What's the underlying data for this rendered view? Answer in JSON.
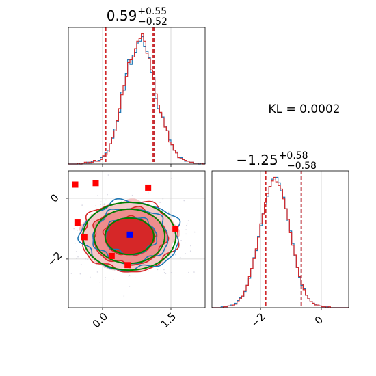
{
  "annotations": {
    "kl_label": "KL = 0.0002"
  },
  "colors": {
    "series_a": "#1f77b4",
    "series_b": "#d62728",
    "gaussian_contour": "#008000",
    "true_point": "#0000ff",
    "samples": "#ff0000",
    "grid": "#d0d0d0",
    "scatter": "#b0b0c8"
  },
  "chart_data": [
    {
      "type": "histogram",
      "panel": "x-marginal",
      "title_main": "0.59",
      "title_sup": "+0.55",
      "title_sub": "−0.52",
      "xlim": [
        -0.75,
        2.25
      ],
      "xticks": [
        0.0,
        1.5
      ],
      "xtick_labels": [
        "",
        ""
      ],
      "grid": true,
      "quantile_lines": {
        "series_a": [
          0.07,
          1.14,
          1.12
        ],
        "series_b": [
          0.07,
          1.14,
          1.11
        ]
      },
      "series": [
        {
          "name": "",
          "color": "#1f77b4",
          "bin_start": -0.75,
          "bin_width": 0.05,
          "counts": [
            0,
            0,
            0,
            0,
            0,
            0,
            1,
            1,
            2,
            1,
            3,
            3,
            3,
            4,
            7,
            8,
            12,
            15,
            22,
            28,
            38,
            46,
            56,
            78,
            80,
            98,
            113,
            108,
            118,
            121,
            131,
            133,
            138,
            127,
            122,
            115,
            99,
            94,
            71,
            60,
            55,
            51,
            41,
            36,
            26,
            21,
            15,
            13,
            7,
            7,
            5,
            3,
            3,
            2,
            2,
            1,
            1,
            0,
            1,
            1
          ]
        },
        {
          "name": "",
          "color": "#d62728",
          "bin_start": -0.75,
          "bin_width": 0.05,
          "counts": [
            0,
            0,
            0,
            0,
            1,
            0,
            1,
            2,
            1,
            2,
            2,
            4,
            3,
            3,
            5,
            9,
            10,
            13,
            22,
            29,
            36,
            47,
            60,
            75,
            85,
            95,
            110,
            113,
            116,
            125,
            133,
            136,
            141,
            133,
            120,
            114,
            102,
            92,
            76,
            64,
            56,
            50,
            40,
            36,
            24,
            21,
            15,
            12,
            7,
            6,
            5,
            4,
            3,
            2,
            2,
            1,
            1,
            1,
            1,
            0
          ]
        }
      ]
    },
    {
      "type": "contour",
      "panel": "joint",
      "xlim": [
        -0.75,
        2.25
      ],
      "ylim": [
        -3.6,
        0.9
      ],
      "xticks": [
        0.0,
        1.5
      ],
      "xtick_labels": [
        "0.0",
        "1.5"
      ],
      "yticks": [
        -2,
        0
      ],
      "ytick_labels": [
        "−2",
        "0"
      ],
      "grid": true,
      "center": {
        "x": 0.59,
        "y": -1.25
      },
      "true_point": {
        "x": 0.6,
        "y": -1.2
      },
      "samples": [
        {
          "x": -0.6,
          "y": 0.45
        },
        {
          "x": -0.15,
          "y": 0.5
        },
        {
          "x": 1.0,
          "y": 0.35
        },
        {
          "x": -0.55,
          "y": -0.8
        },
        {
          "x": -0.4,
          "y": -1.28
        },
        {
          "x": 0.55,
          "y": -2.2
        },
        {
          "x": 0.2,
          "y": -1.9
        },
        {
          "x": 1.6,
          "y": -1.0
        }
      ],
      "levels": [
        {
          "rx": 0.55,
          "ry": 0.62
        },
        {
          "rx": 0.8,
          "ry": 0.92
        },
        {
          "rx": 1.05,
          "ry": 1.15
        }
      ]
    },
    {
      "type": "histogram",
      "panel": "y-marginal",
      "title_main": "−1.25",
      "title_sup": "+0.58",
      "title_sub": "−0.58",
      "xlim": [
        -3.6,
        0.9
      ],
      "xticks": [
        -2,
        0
      ],
      "xtick_labels": [
        "−2",
        "0"
      ],
      "grid": true,
      "quantile_lines": {
        "series_a": [
          -1.83,
          -0.66
        ],
        "series_b": [
          -1.83,
          -0.66
        ]
      },
      "series": [
        {
          "name": "",
          "color": "#1f77b4",
          "bin_start": -3.6,
          "bin_width": 0.075,
          "counts": [
            0,
            0,
            0,
            0,
            1,
            1,
            1,
            2,
            3,
            3,
            5,
            8,
            11,
            12,
            18,
            25,
            33,
            44,
            56,
            64,
            80,
            92,
            106,
            116,
            125,
            136,
            144,
            143,
            146,
            140,
            131,
            124,
            111,
            97,
            86,
            72,
            58,
            45,
            34,
            25,
            21,
            14,
            10,
            7,
            5,
            4,
            3,
            2,
            1,
            1,
            1,
            0,
            0,
            0,
            0,
            0,
            0,
            0,
            0,
            0
          ]
        },
        {
          "name": "",
          "color": "#d62728",
          "bin_start": -3.6,
          "bin_width": 0.075,
          "counts": [
            0,
            0,
            0,
            0,
            0,
            1,
            1,
            2,
            2,
            3,
            4,
            7,
            10,
            13,
            19,
            25,
            35,
            44,
            55,
            66,
            79,
            94,
            105,
            118,
            128,
            136,
            142,
            146,
            141,
            137,
            133,
            122,
            111,
            99,
            84,
            70,
            59,
            45,
            35,
            26,
            20,
            14,
            10,
            7,
            5,
            3,
            3,
            2,
            1,
            1,
            0,
            1,
            0,
            0,
            0,
            0,
            0,
            0,
            0,
            0
          ]
        }
      ]
    }
  ]
}
